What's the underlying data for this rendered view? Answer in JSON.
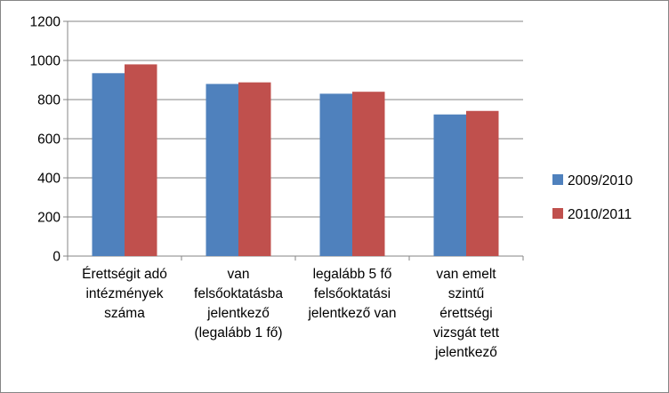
{
  "chart_data": {
    "type": "bar",
    "categories": [
      [
        "Érettségit adó",
        "intézmények",
        "száma"
      ],
      [
        "van",
        "felsőoktatásba",
        "jelentkező",
        "(legalább 1 fő)"
      ],
      [
        "legalább 5 fő",
        "felsőoktatási",
        "jelentkező van"
      ],
      [
        "van emelt",
        "szintű",
        "érettségi",
        "vizsgát tett",
        "jelentkező"
      ]
    ],
    "series": [
      {
        "name": "2009/2010",
        "color": "#4F81BD",
        "values": [
          935,
          880,
          830,
          724
        ]
      },
      {
        "name": "2010/2011",
        "color": "#C0504D",
        "values": [
          980,
          888,
          840,
          742
        ]
      }
    ],
    "ylim": [
      0,
      1200
    ],
    "yticks": [
      "0",
      "200",
      "400",
      "600",
      "800",
      "1000",
      "1200"
    ],
    "grid": true,
    "legend_position": "right"
  }
}
